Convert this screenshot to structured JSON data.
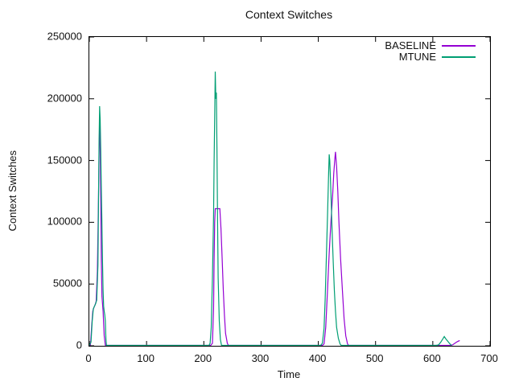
{
  "chart_data": {
    "type": "line",
    "title": "Context Switches",
    "xlabel": "Time",
    "ylabel": "Context Switches",
    "xlim": [
      0,
      700
    ],
    "ylim": [
      0,
      250000
    ],
    "x_ticks": [
      0,
      100,
      200,
      300,
      400,
      500,
      600,
      700
    ],
    "y_ticks": [
      0,
      50000,
      100000,
      150000,
      200000,
      250000
    ],
    "grid": false,
    "legend_position": "top-right",
    "background_color": "#ffffff",
    "border_color": "#000000",
    "series": [
      {
        "name": "BASELINE",
        "color": "#9400d3",
        "points": [
          [
            0,
            300
          ],
          [
            2,
            800
          ],
          [
            4,
            15000
          ],
          [
            6,
            28000
          ],
          [
            8,
            31000
          ],
          [
            10,
            33000
          ],
          [
            12,
            36000
          ],
          [
            14,
            60000
          ],
          [
            16,
            120000
          ],
          [
            17,
            155000
          ],
          [
            18,
            179000
          ],
          [
            19,
            165000
          ],
          [
            20,
            120000
          ],
          [
            21,
            70000
          ],
          [
            22,
            40000
          ],
          [
            24,
            28000
          ],
          [
            26,
            8000
          ],
          [
            28,
            500
          ],
          [
            30,
            300
          ],
          [
            60,
            300
          ],
          [
            120,
            300
          ],
          [
            180,
            300
          ],
          [
            212,
            300
          ],
          [
            215,
            2000
          ],
          [
            217,
            30000
          ],
          [
            218,
            70000
          ],
          [
            219,
            100000
          ],
          [
            220,
            111000
          ],
          [
            228,
            111000
          ],
          [
            230,
            95000
          ],
          [
            232,
            70000
          ],
          [
            234,
            45000
          ],
          [
            236,
            25000
          ],
          [
            238,
            10000
          ],
          [
            241,
            2000
          ],
          [
            243,
            300
          ],
          [
            300,
            300
          ],
          [
            360,
            300
          ],
          [
            407,
            300
          ],
          [
            410,
            1500
          ],
          [
            413,
            15000
          ],
          [
            416,
            45000
          ],
          [
            419,
            75000
          ],
          [
            422,
            100000
          ],
          [
            425,
            122000
          ],
          [
            427,
            140000
          ],
          [
            429,
            152000
          ],
          [
            430,
            157000
          ],
          [
            432,
            145000
          ],
          [
            434,
            125000
          ],
          [
            436,
            100000
          ],
          [
            439,
            70000
          ],
          [
            442,
            45000
          ],
          [
            445,
            22000
          ],
          [
            448,
            8000
          ],
          [
            451,
            1500
          ],
          [
            453,
            300
          ],
          [
            500,
            300
          ],
          [
            560,
            300
          ],
          [
            600,
            300
          ],
          [
            632,
            300
          ],
          [
            635,
            900
          ],
          [
            639,
            2200
          ],
          [
            643,
            3400
          ],
          [
            647,
            4300
          ]
        ]
      },
      {
        "name": "MTUNE",
        "color": "#009e73",
        "points": [
          [
            0,
            300
          ],
          [
            3,
            3000
          ],
          [
            5,
            20000
          ],
          [
            7,
            30000
          ],
          [
            9,
            32000
          ],
          [
            11,
            34000
          ],
          [
            13,
            37000
          ],
          [
            15,
            65000
          ],
          [
            16,
            115000
          ],
          [
            17,
            165000
          ],
          [
            18,
            194000
          ],
          [
            19,
            183000
          ],
          [
            20,
            158000
          ],
          [
            21,
            128000
          ],
          [
            22,
            98000
          ],
          [
            23,
            68000
          ],
          [
            24,
            45000
          ],
          [
            25,
            32000
          ],
          [
            26,
            28000
          ],
          [
            27,
            25000
          ],
          [
            28,
            20000
          ],
          [
            29,
            6000
          ],
          [
            30,
            300
          ],
          [
            60,
            300
          ],
          [
            120,
            300
          ],
          [
            180,
            300
          ],
          [
            209,
            300
          ],
          [
            211,
            2000
          ],
          [
            213,
            15000
          ],
          [
            215,
            55000
          ],
          [
            217,
            105000
          ],
          [
            218,
            150000
          ],
          [
            219,
            185000
          ],
          [
            220,
            222000
          ],
          [
            221,
            200000
          ],
          [
            222,
            205000
          ],
          [
            223,
            160000
          ],
          [
            224,
            100000
          ],
          [
            225,
            55000
          ],
          [
            227,
            20000
          ],
          [
            229,
            5000
          ],
          [
            231,
            300
          ],
          [
            300,
            300
          ],
          [
            360,
            300
          ],
          [
            404,
            300
          ],
          [
            407,
            2000
          ],
          [
            410,
            14000
          ],
          [
            412,
            38000
          ],
          [
            414,
            70000
          ],
          [
            416,
            105000
          ],
          [
            418,
            140000
          ],
          [
            419,
            155000
          ],
          [
            420,
            150000
          ],
          [
            422,
            125000
          ],
          [
            424,
            95000
          ],
          [
            426,
            68000
          ],
          [
            428,
            45000
          ],
          [
            430,
            28000
          ],
          [
            432,
            15000
          ],
          [
            435,
            6000
          ],
          [
            438,
            1500
          ],
          [
            440,
            300
          ],
          [
            500,
            300
          ],
          [
            560,
            300
          ],
          [
            606,
            300
          ],
          [
            610,
            700
          ],
          [
            614,
            3000
          ],
          [
            618,
            6000
          ],
          [
            620,
            7500
          ],
          [
            623,
            5500
          ],
          [
            627,
            3200
          ],
          [
            630,
            1500
          ],
          [
            633,
            300
          ]
        ]
      }
    ]
  }
}
